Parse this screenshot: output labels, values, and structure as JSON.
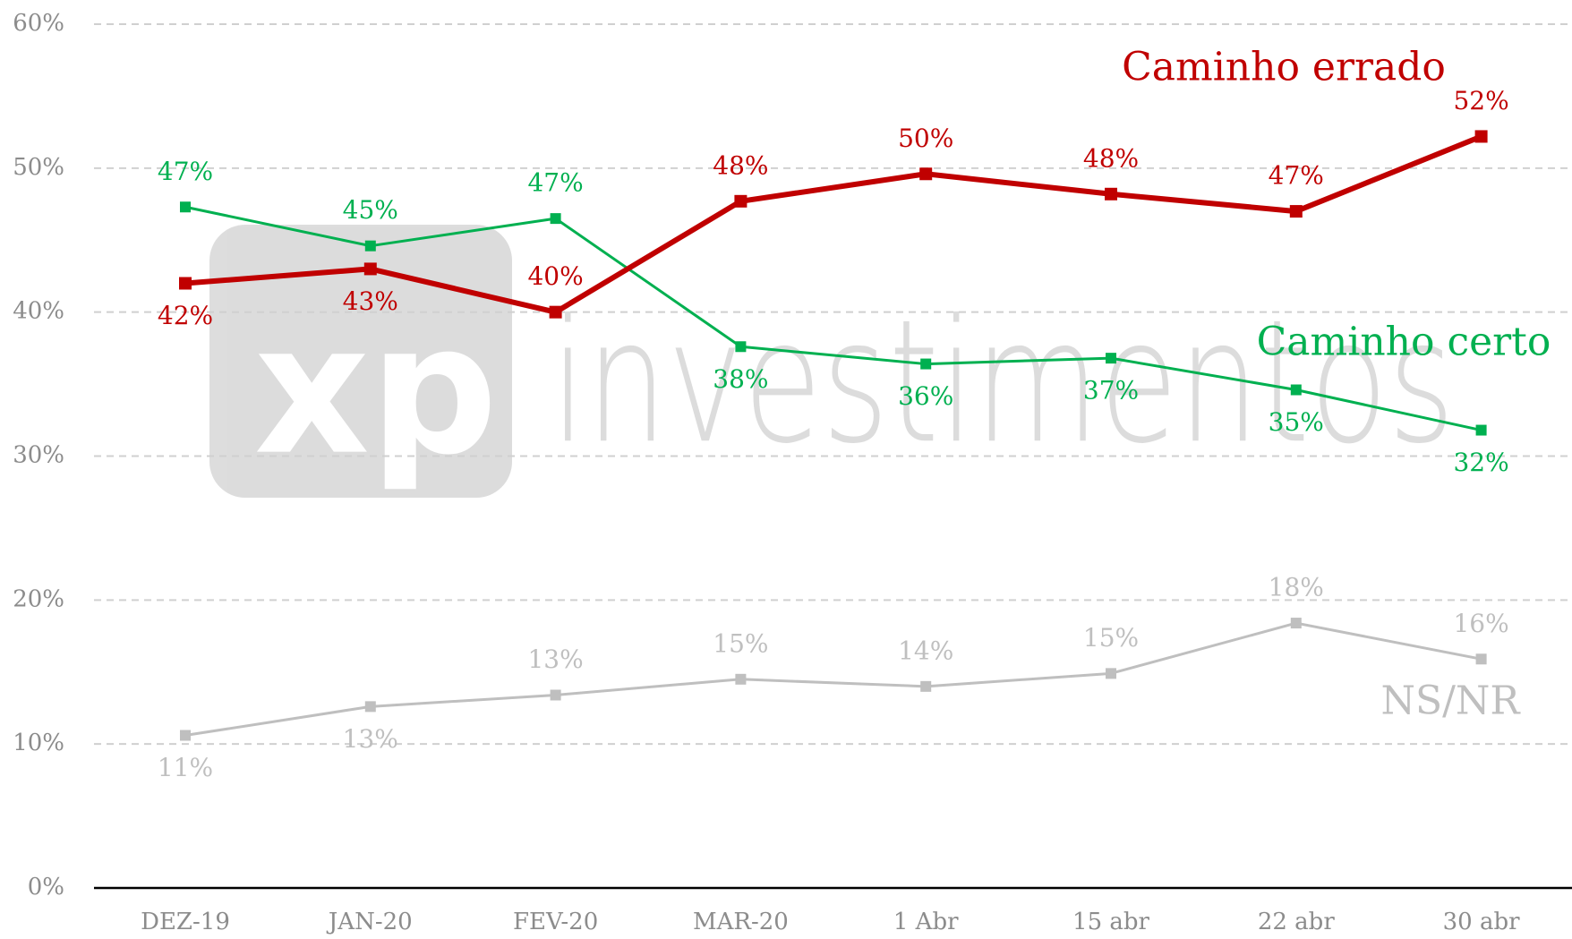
{
  "chart_data": {
    "type": "line",
    "watermark": {
      "logo": "xp",
      "text": "investimentos"
    },
    "categories": [
      "DEZ-19",
      "JAN-20",
      "FEV-20",
      "MAR-20",
      "1 Abr",
      "15 abr",
      "22 abr",
      "30 abr"
    ],
    "series": [
      {
        "name": "Caminho errado",
        "color": "#c00000",
        "values": [
          42,
          43,
          40,
          47.7,
          49.6,
          48.2,
          47,
          52.2
        ],
        "value_labels": [
          "42%",
          "43%",
          "40%",
          "48%",
          "50%",
          "48%",
          "47%",
          "52%"
        ]
      },
      {
        "name": "Caminho certo",
        "color": "#00b050",
        "values": [
          47.3,
          44.6,
          46.5,
          37.6,
          36.4,
          36.8,
          34.6,
          31.8
        ],
        "value_labels": [
          "47%",
          "45%",
          "47%",
          "38%",
          "36%",
          "37%",
          "35%",
          "32%"
        ]
      },
      {
        "name": "NS/NR",
        "color": "#bfbfbf",
        "values": [
          10.6,
          12.6,
          13.4,
          14.5,
          14,
          14.9,
          18.4,
          15.9
        ],
        "value_labels": [
          "11%",
          "13%",
          "13%",
          "15%",
          "14%",
          "15%",
          "18%",
          "16%"
        ]
      }
    ],
    "ylim": [
      0,
      60
    ],
    "yticks": [
      {
        "value": 0,
        "label": "0%"
      },
      {
        "value": 10,
        "label": "10%"
      },
      {
        "value": 20,
        "label": "20%"
      },
      {
        "value": 30,
        "label": "30%"
      },
      {
        "value": 40,
        "label": "40%"
      },
      {
        "value": 50,
        "label": "50%"
      },
      {
        "value": 60,
        "label": "60%"
      }
    ],
    "grid": true
  }
}
